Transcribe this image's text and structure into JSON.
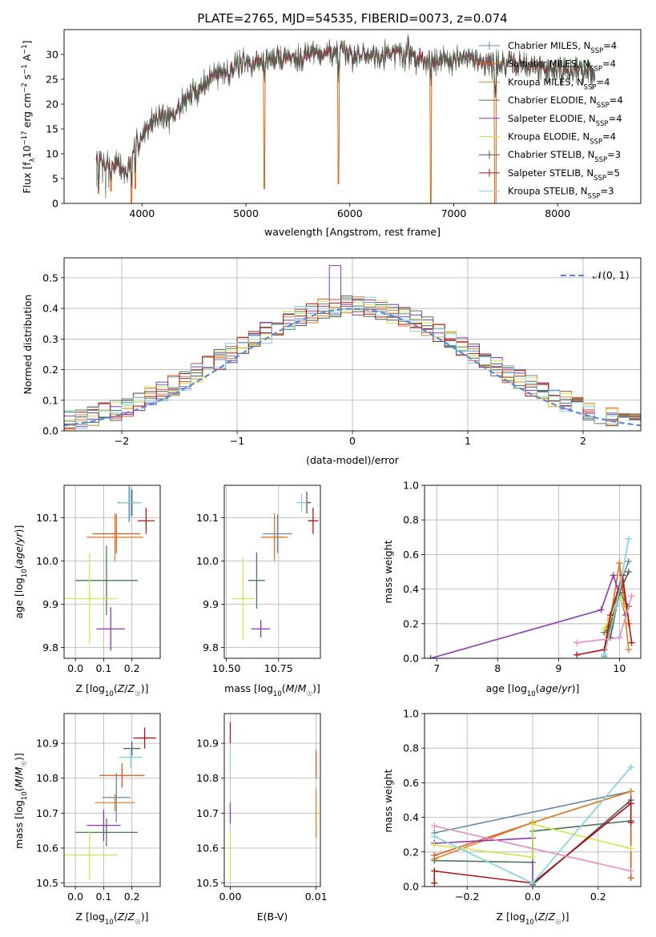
{
  "chart_data": [
    {
      "id": "spectrum",
      "type": "line",
      "title": "PLATE=2765, MJD=54535, FIBERID=0073, z=0.074",
      "xlabel": "wavelength [Angstrom, rest frame]",
      "ylabel": "Flux [f_λ 10^-17 erg cm^-2 s^-1 A^-1]",
      "xlim": [
        3250,
        8800
      ],
      "ylim": [
        0,
        35
      ],
      "xticks": [
        4000,
        5000,
        6000,
        7000,
        8000
      ],
      "yticks": [
        0,
        5,
        10,
        15,
        20,
        25,
        30
      ],
      "legend_position": "top-right",
      "continuum": [
        [
          3550,
          9
        ],
        [
          3650,
          8
        ],
        [
          3750,
          8
        ],
        [
          3850,
          6
        ],
        [
          3950,
          12
        ],
        [
          4050,
          15
        ],
        [
          4150,
          18
        ],
        [
          4300,
          17
        ],
        [
          4400,
          21
        ],
        [
          4550,
          23
        ],
        [
          4700,
          26
        ],
        [
          4850,
          27
        ],
        [
          5000,
          28
        ],
        [
          5200,
          29
        ],
        [
          5400,
          29.5
        ],
        [
          5600,
          30
        ],
        [
          5800,
          30.5
        ],
        [
          6000,
          30
        ],
        [
          6200,
          30
        ],
        [
          6400,
          30.5
        ],
        [
          6600,
          29.5
        ],
        [
          6800,
          29
        ],
        [
          7000,
          29
        ],
        [
          7200,
          29
        ],
        [
          7400,
          28
        ],
        [
          7600,
          28
        ],
        [
          7800,
          27.5
        ],
        [
          8000,
          27
        ],
        [
          8200,
          27
        ],
        [
          8350,
          26
        ]
      ],
      "features": [
        [
          3580,
          2,
          "down"
        ],
        [
          3700,
          2.5,
          "down"
        ],
        [
          3900,
          0,
          "down"
        ],
        [
          3935,
          3,
          "down"
        ],
        [
          5175,
          3,
          "down"
        ],
        [
          5890,
          4,
          "down"
        ],
        [
          6563,
          3,
          "up"
        ],
        [
          6780,
          0,
          "down"
        ],
        [
          7400,
          0,
          "down"
        ]
      ],
      "series": [
        {
          "name": "Chabrier MILES, N_SSP=4",
          "label_main": "Chabrier MILES, N",
          "label_sub": "SSP",
          "label_tail": "=4",
          "color": "#6688aa"
        },
        {
          "name": "Salpeter MILES, N_SSP=4",
          "label_main": "Salpeter MILES, N",
          "label_sub": "SSP",
          "label_tail": "=4",
          "color": "#e5531a"
        },
        {
          "name": "Kroupa MILES, N_SSP=4",
          "label_main": "Kroupa MILES, N",
          "label_sub": "SSP",
          "label_tail": "=4",
          "color": "#d9822b"
        },
        {
          "name": "Chabrier ELODIE, N_SSP=4",
          "label_main": "Chabrier ELODIE, N",
          "label_sub": "SSP",
          "label_tail": "=4",
          "color": "#4a7a52"
        },
        {
          "name": "Salpeter ELODIE, N_SSP=4",
          "label_main": "Salpeter ELODIE, N",
          "label_sub": "SSP",
          "label_tail": "=4",
          "color": "#8e35b4"
        },
        {
          "name": "Kroupa ELODIE, N_SSP=4",
          "label_main": "Kroupa ELODIE, N",
          "label_sub": "SSP",
          "label_tail": "=4",
          "color": "#cfe84c"
        },
        {
          "name": "Chabrier STELIB, N_SSP=3",
          "label_main": "Chabrier STELIB, N",
          "label_sub": "SSP",
          "label_tail": "=3",
          "color": "#555555"
        },
        {
          "name": "Salpeter STELIB, N_SSP=5",
          "label_main": "Salpeter STELIB, N",
          "label_sub": "SSP",
          "label_tail": "=5",
          "color": "#b01515"
        },
        {
          "name": "Kroupa STELIB, N_SSP=3",
          "label_main": "Kroupa STELIB, N",
          "label_sub": "SSP",
          "label_tail": "=3",
          "color": "#7fd3dd"
        }
      ]
    },
    {
      "id": "residuals",
      "type": "histogram",
      "xlabel": "(data-model)/error",
      "ylabel": "Normed distribution",
      "xlim": [
        -2.5,
        2.5
      ],
      "ylim": [
        0,
        0.565
      ],
      "xticks": [
        -2,
        -1,
        0,
        1,
        2
      ],
      "yticks": [
        0.0,
        0.1,
        0.2,
        0.3,
        0.4,
        0.5
      ],
      "bin_width": 0.1,
      "reference_curve": {
        "label": "𝒩(0, 1)",
        "mean": 0,
        "sigma": 1,
        "color": "#5a8ad8"
      },
      "legend_position": "top-right"
    },
    {
      "id": "age_vs_Z",
      "type": "errorbar",
      "xlabel": "Z [log10(Z/Z☉)]",
      "ylabel": "age [log10(age/yr)]",
      "xlim": [
        -0.04,
        0.3
      ],
      "ylim": [
        9.775,
        10.175
      ],
      "xticks": [
        0.0,
        0.1,
        0.2
      ],
      "yticks": [
        9.8,
        9.9,
        10.0,
        10.1
      ],
      "points": [
        {
          "x": 0.19,
          "y": 10.135,
          "xerr": 0.04,
          "yerr": 0.045,
          "series": "Chabrier MILES, N_SSP=4"
        },
        {
          "x": 0.145,
          "y": 10.063,
          "xerr": 0.085,
          "yerr": 0.045,
          "series": "Salpeter MILES, N_SSP=4"
        },
        {
          "x": 0.14,
          "y": 10.055,
          "xerr": 0.1,
          "yerr": 0.055,
          "series": "Kroupa MILES, N_SSP=4"
        },
        {
          "x": 0.11,
          "y": 9.955,
          "xerr": 0.11,
          "yerr": 0.08,
          "series": "Chabrier ELODIE, N_SSP=4"
        },
        {
          "x": 0.125,
          "y": 9.843,
          "xerr": 0.05,
          "yerr": 0.05,
          "series": "Salpeter ELODIE, N_SSP=4"
        },
        {
          "x": 0.05,
          "y": 9.913,
          "xerr": 0.1,
          "yerr": 0.105,
          "series": "Kroupa ELODIE, N_SSP=4"
        },
        {
          "x": 0.2,
          "y": 10.135,
          "xerr": 0.02,
          "yerr": 0.03,
          "series": "Chabrier STELIB, N_SSP=3"
        },
        {
          "x": 0.25,
          "y": 10.093,
          "xerr": 0.03,
          "yerr": 0.03,
          "series": "Salpeter STELIB, N_SSP=5"
        },
        {
          "x": 0.195,
          "y": 10.135,
          "xerr": 0.04,
          "yerr": 0.035,
          "series": "Kroupa STELIB, N_SSP=3"
        }
      ]
    },
    {
      "id": "age_vs_mass",
      "type": "errorbar",
      "xlabel": "mass [log10(M/M☉)]",
      "ylabel": "",
      "xlim": [
        10.49,
        10.95
      ],
      "ylim": [
        9.775,
        10.175
      ],
      "xticks": [
        10.5,
        10.75
      ],
      "yticks": [
        9.8,
        9.9,
        10.0,
        10.1
      ],
      "points": [
        {
          "x": 10.745,
          "y": 10.063,
          "xerr": 0.07,
          "yerr": 0.045,
          "series": "Chabrier MILES, N_SSP=4"
        },
        {
          "x": 10.73,
          "y": 10.055,
          "xerr": 0.05,
          "yerr": 0.045,
          "series": "Salpeter MILES, N_SSP=4"
        },
        {
          "x": 10.73,
          "y": 10.055,
          "xerr": 0.065,
          "yerr": 0.055,
          "series": "Kroupa MILES, N_SSP=4"
        },
        {
          "x": 10.645,
          "y": 9.955,
          "xerr": 0.04,
          "yerr": 0.065,
          "series": "Chabrier ELODIE, N_SSP=4"
        },
        {
          "x": 10.665,
          "y": 9.843,
          "xerr": 0.045,
          "yerr": 0.02,
          "series": "Salpeter ELODIE, N_SSP=4"
        },
        {
          "x": 10.58,
          "y": 9.913,
          "xerr": 0.055,
          "yerr": 0.095,
          "series": "Kroupa ELODIE, N_SSP=4"
        },
        {
          "x": 10.885,
          "y": 10.135,
          "xerr": 0.02,
          "yerr": 0.025,
          "series": "Chabrier STELIB, N_SSP=3"
        },
        {
          "x": 10.915,
          "y": 10.093,
          "xerr": 0.025,
          "yerr": 0.03,
          "series": "Salpeter STELIB, N_SSP=5"
        },
        {
          "x": 10.86,
          "y": 10.135,
          "xerr": 0.025,
          "yerr": 0.02,
          "series": "Kroupa STELIB, N_SSP=3"
        }
      ]
    },
    {
      "id": "massweight_vs_age",
      "type": "line",
      "xlabel": "age [log10(age/yr)]",
      "ylabel": "mass weight",
      "xlim": [
        6.8,
        10.35
      ],
      "ylim": [
        0,
        1.0
      ],
      "xticks": [
        7,
        8,
        9,
        10
      ],
      "yticks": [
        0.0,
        0.2,
        0.4,
        0.6,
        0.8,
        1.0
      ],
      "series": [
        {
          "series": "Chabrier MILES, N_SSP=4",
          "x": [
            9.75,
            9.85,
            10.0,
            10.15
          ],
          "y": [
            0.01,
            0.2,
            0.42,
            0.56
          ]
        },
        {
          "series": "Salpeter MILES, N_SSP=4",
          "x": [
            9.75,
            9.85,
            10.0,
            10.15
          ],
          "y": [
            0.02,
            0.22,
            0.55,
            0.2
          ]
        },
        {
          "series": "Kroupa MILES, N_SSP=4",
          "x": [
            9.75,
            9.85,
            10.0,
            10.15
          ],
          "y": [
            0.15,
            0.23,
            0.55,
            0.05
          ]
        },
        {
          "series": "Chabrier ELODIE, N_SSP=4",
          "x": [
            9.75,
            9.85,
            10.0,
            10.15
          ],
          "y": [
            0.15,
            0.18,
            0.38,
            0.3
          ]
        },
        {
          "series": "Salpeter ELODIE, N_SSP=4",
          "x": [
            6.9,
            9.7,
            9.9,
            10.1
          ],
          "y": [
            0.0,
            0.28,
            0.48,
            0.25
          ]
        },
        {
          "series": "Kroupa ELODIE, N_SSP=4",
          "x": [
            9.75,
            9.85,
            10.0,
            10.15
          ],
          "y": [
            0.17,
            0.24,
            0.36,
            0.22
          ]
        },
        {
          "series": "Chabrier STELIB, N_SSP=3",
          "x": [
            9.85,
            10.0,
            10.15
          ],
          "y": [
            0.12,
            0.38,
            0.5
          ]
        },
        {
          "series": "Salpeter STELIB, N_SSP=5",
          "x": [
            9.3,
            9.75,
            9.85,
            10.05,
            10.2
          ],
          "y": [
            0.02,
            0.05,
            0.25,
            0.48,
            0.09
          ]
        },
        {
          "series": "Kroupa STELIB, N_SSP=3",
          "x": [
            9.75,
            9.95,
            10.15
          ],
          "y": [
            0.02,
            0.3,
            0.69
          ]
        },
        {
          "series": "pink",
          "color": "#e98bc0",
          "x": [
            9.3,
            10.0,
            10.2
          ],
          "y": [
            0.09,
            0.12,
            0.36
          ]
        }
      ]
    },
    {
      "id": "mass_vs_Z",
      "type": "errorbar",
      "xlabel": "Z [log10(Z/Z☉)]",
      "ylabel": "mass [log10(M/M☉)]",
      "xlim": [
        -0.04,
        0.3
      ],
      "ylim": [
        10.49,
        10.985
      ],
      "xticks": [
        0.0,
        0.1,
        0.2
      ],
      "yticks": [
        10.5,
        10.6,
        10.7,
        10.8,
        10.9
      ],
      "points": [
        {
          "x": 0.145,
          "y": 10.745,
          "xerr": 0.05,
          "yerr": 0.07,
          "series": "Chabrier MILES, N_SSP=4"
        },
        {
          "x": 0.165,
          "y": 10.808,
          "xerr": 0.08,
          "yerr": 0.035,
          "series": "Salpeter MILES, N_SSP=4"
        },
        {
          "x": 0.14,
          "y": 10.73,
          "xerr": 0.07,
          "yerr": 0.025,
          "series": "Kroupa MILES, N_SSP=4"
        },
        {
          "x": 0.11,
          "y": 10.645,
          "xerr": 0.11,
          "yerr": 0.04,
          "series": "Chabrier ELODIE, N_SSP=4"
        },
        {
          "x": 0.1,
          "y": 10.665,
          "xerr": 0.06,
          "yerr": 0.045,
          "series": "Salpeter ELODIE, N_SSP=4"
        },
        {
          "x": 0.05,
          "y": 10.58,
          "xerr": 0.1,
          "yerr": 0.07,
          "series": "Kroupa ELODIE, N_SSP=4"
        },
        {
          "x": 0.2,
          "y": 10.885,
          "xerr": 0.03,
          "yerr": 0.02,
          "series": "Chabrier STELIB, N_SSP=3"
        },
        {
          "x": 0.245,
          "y": 10.915,
          "xerr": 0.04,
          "yerr": 0.03,
          "series": "Salpeter STELIB, N_SSP=5"
        },
        {
          "x": 0.195,
          "y": 10.86,
          "xerr": 0.04,
          "yerr": 0.03,
          "series": "Kroupa STELIB, N_SSP=3"
        }
      ]
    },
    {
      "id": "mass_vs_ebv",
      "type": "errorbar",
      "xlabel": "E(B-V)",
      "ylabel": "",
      "xlim": [
        -0.0007,
        0.0105
      ],
      "ylim": [
        10.49,
        10.985
      ],
      "xticks": [
        0.0,
        0.01
      ],
      "yticks": [
        10.5,
        10.6,
        10.7,
        10.8,
        10.9
      ],
      "points": [
        {
          "x": 0.0,
          "y": 10.93,
          "xerr": 0.0,
          "yerr": 0.03,
          "series": "Salpeter STELIB, N_SSP=5"
        },
        {
          "x": 0.0,
          "y": 10.85,
          "xerr": 0.0,
          "yerr": 0.03,
          "series": "Kroupa STELIB, N_SSP=3"
        },
        {
          "x": 0.0,
          "y": 10.7,
          "xerr": 0.0,
          "yerr": 0.03,
          "series": "Salpeter ELODIE, N_SSP=4"
        },
        {
          "x": 0.0,
          "y": 10.58,
          "xerr": 0.0,
          "yerr": 0.07,
          "series": "Kroupa ELODIE, N_SSP=4"
        },
        {
          "x": 0.01,
          "y": 10.84,
          "xerr": 0.0,
          "yerr": 0.04,
          "series": "Salpeter MILES, N_SSP=4"
        },
        {
          "x": 0.01,
          "y": 10.7,
          "xerr": 0.0,
          "yerr": 0.07,
          "series": "Kroupa MILES, N_SSP=4"
        }
      ]
    },
    {
      "id": "massweight_vs_Z",
      "type": "line",
      "xlabel": "Z [log10(Z/Z☉)]",
      "ylabel": "mass weight",
      "xlim": [
        -0.33,
        0.33
      ],
      "ylim": [
        0,
        1.0
      ],
      "xticks": [
        -0.2,
        0.0,
        0.2
      ],
      "yticks": [
        0.0,
        0.2,
        0.4,
        0.6,
        0.8,
        1.0
      ],
      "series": [
        {
          "series": "Chabrier MILES, N_SSP=4",
          "x": [
            -0.3,
            0.3
          ],
          "y": [
            0.31,
            0.55
          ]
        },
        {
          "series": "Salpeter MILES, N_SSP=4",
          "x": [
            -0.3,
            0.0,
            0.3,
            0.3
          ],
          "y": [
            0.18,
            0.37,
            0.55,
            0.05
          ]
        },
        {
          "series": "Kroupa MILES, N_SSP=4",
          "x": [
            -0.3,
            0.0,
            0.3
          ],
          "y": [
            0.16,
            0.37,
            0.55
          ]
        },
        {
          "series": "Chabrier ELODIE, N_SSP=4",
          "x": [
            -0.3,
            0.0,
            0.0,
            0.3
          ],
          "y": [
            0.15,
            0.14,
            0.32,
            0.38
          ]
        },
        {
          "series": "Salpeter ELODIE, N_SSP=4",
          "x": [
            -0.3,
            0.0,
            0.0,
            0.3
          ],
          "y": [
            0.25,
            0.28,
            0.02,
            0.48
          ]
        },
        {
          "series": "Kroupa ELODIE, N_SSP=4",
          "x": [
            -0.3,
            0.0,
            0.0,
            0.3
          ],
          "y": [
            0.24,
            0.17,
            0.36,
            0.22
          ]
        },
        {
          "series": "Chabrier STELIB, N_SSP=3",
          "x": [
            0.0,
            0.3
          ],
          "y": [
            0.01,
            0.5
          ]
        },
        {
          "series": "Salpeter STELIB, N_SSP=5",
          "x": [
            -0.3,
            -0.3,
            0.0,
            0.3,
            0.3
          ],
          "y": [
            0.02,
            0.09,
            0.02,
            0.48,
            0.37
          ]
        },
        {
          "series": "Kroupa STELIB, N_SSP=3",
          "x": [
            -0.3,
            0.0,
            0.3
          ],
          "y": [
            0.29,
            0.02,
            0.69
          ]
        },
        {
          "series": "pink",
          "color": "#e98bc0",
          "x": [
            -0.3,
            0.3
          ],
          "y": [
            0.35,
            0.09
          ]
        }
      ]
    }
  ]
}
